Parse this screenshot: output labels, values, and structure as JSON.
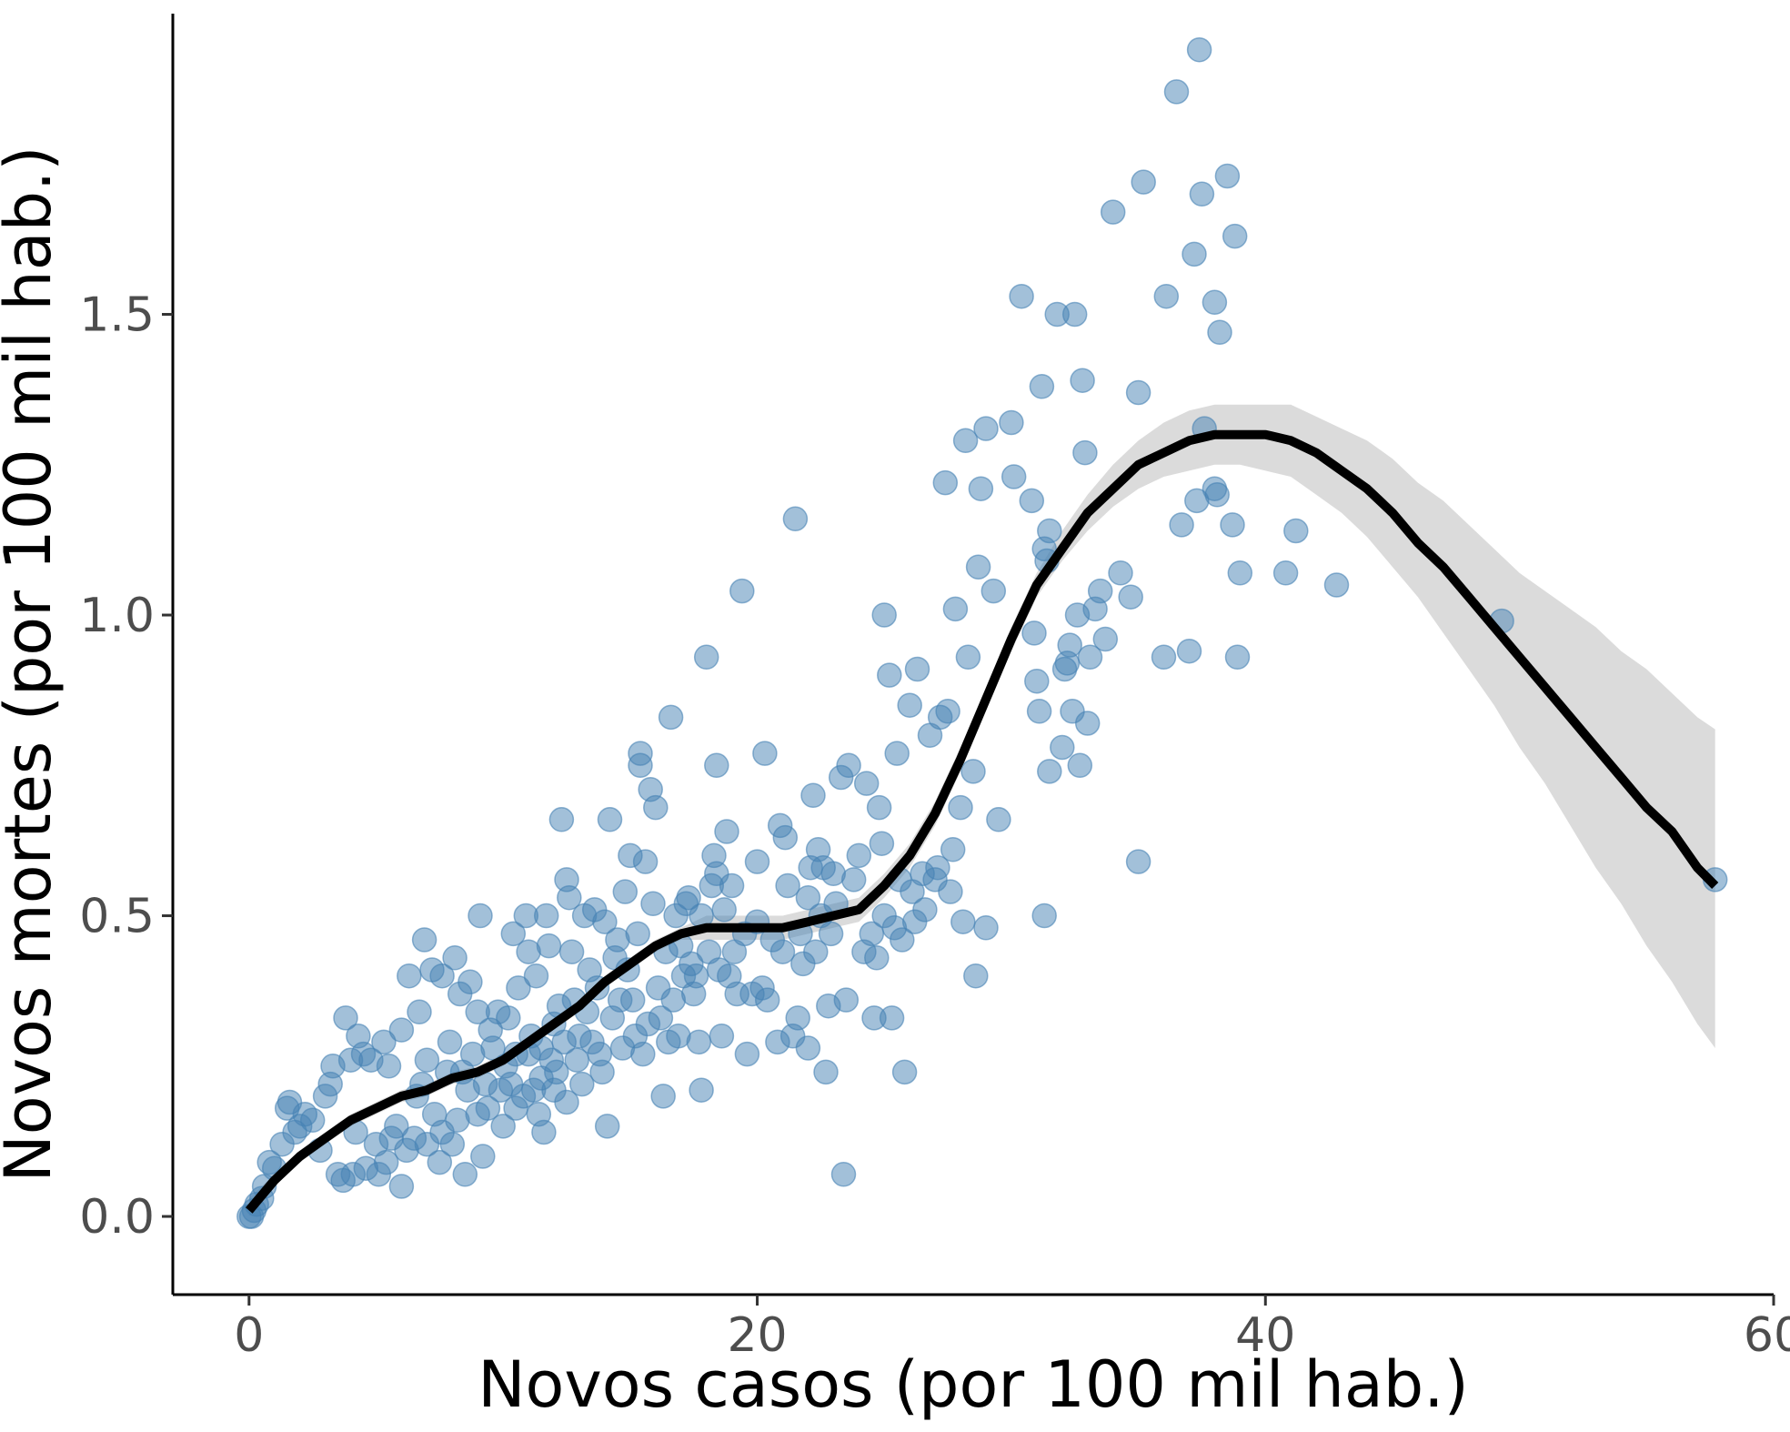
{
  "chart_data": {
    "type": "scatter",
    "title": "",
    "xlabel": "Novos casos (por 100 mil hab.)",
    "ylabel": "Novos mortes (por 100 mil hab.)",
    "xlim": [
      -3,
      60
    ],
    "ylim": [
      -0.13,
      2.0
    ],
    "x_ticks": [
      0,
      20,
      40,
      60
    ],
    "x_tick_labels": [
      "0",
      "20",
      "40",
      "60"
    ],
    "y_ticks": [
      0,
      0.5,
      1,
      1.5
    ],
    "y_tick_labels": [
      "0.0",
      "0.5",
      "1.0",
      "1.5"
    ],
    "grid": false,
    "legend": "none",
    "colors": {
      "points": "#4682b4",
      "smooth_line": "#000000",
      "confidence_band": "#d9d9d9"
    },
    "points": [
      [
        0,
        0
      ],
      [
        0.1,
        0
      ],
      [
        0.2,
        0.01
      ],
      [
        0.3,
        0.02
      ],
      [
        0.5,
        0.03
      ],
      [
        0.6,
        0.05
      ],
      [
        0.8,
        0.09
      ],
      [
        1,
        0.08
      ],
      [
        1.3,
        0.12
      ],
      [
        1.5,
        0.18
      ],
      [
        1.6,
        0.19
      ],
      [
        1.8,
        0.14
      ],
      [
        2,
        0.15
      ],
      [
        2.2,
        0.17
      ],
      [
        2.5,
        0.16
      ],
      [
        2.8,
        0.11
      ],
      [
        3,
        0.2
      ],
      [
        3.2,
        0.22
      ],
      [
        3.3,
        0.25
      ],
      [
        3.5,
        0.07
      ],
      [
        3.7,
        0.06
      ],
      [
        3.8,
        0.33
      ],
      [
        4,
        0.26
      ],
      [
        4.1,
        0.07
      ],
      [
        4.2,
        0.14
      ],
      [
        4.3,
        0.3
      ],
      [
        4.5,
        0.27
      ],
      [
        4.6,
        0.08
      ],
      [
        4.8,
        0.26
      ],
      [
        5,
        0.12
      ],
      [
        5.1,
        0.07
      ],
      [
        5.3,
        0.29
      ],
      [
        5.4,
        0.09
      ],
      [
        5.5,
        0.25
      ],
      [
        5.6,
        0.13
      ],
      [
        5.8,
        0.15
      ],
      [
        6,
        0.31
      ],
      [
        6,
        0.05
      ],
      [
        6.2,
        0.11
      ],
      [
        6.3,
        0.4
      ],
      [
        6.5,
        0.13
      ],
      [
        6.6,
        0.2
      ],
      [
        6.7,
        0.34
      ],
      [
        6.8,
        0.22
      ],
      [
        6.9,
        0.46
      ],
      [
        7,
        0.26
      ],
      [
        7,
        0.12
      ],
      [
        7.2,
        0.41
      ],
      [
        7.3,
        0.17
      ],
      [
        7.5,
        0.09
      ],
      [
        7.6,
        0.4
      ],
      [
        7.6,
        0.14
      ],
      [
        7.8,
        0.24
      ],
      [
        7.9,
        0.29
      ],
      [
        8,
        0.12
      ],
      [
        8.1,
        0.43
      ],
      [
        8.2,
        0.16
      ],
      [
        8.3,
        0.37
      ],
      [
        8.4,
        0.24
      ],
      [
        8.5,
        0.07
      ],
      [
        8.6,
        0.21
      ],
      [
        8.7,
        0.39
      ],
      [
        8.8,
        0.27
      ],
      [
        9,
        0.34
      ],
      [
        9,
        0.17
      ],
      [
        9.1,
        0.5
      ],
      [
        9.2,
        0.1
      ],
      [
        9.3,
        0.22
      ],
      [
        9.4,
        0.18
      ],
      [
        9.5,
        0.31
      ],
      [
        9.6,
        0.28
      ],
      [
        9.8,
        0.34
      ],
      [
        9.9,
        0.21
      ],
      [
        10,
        0.15
      ],
      [
        10.1,
        0.25
      ],
      [
        10.2,
        0.33
      ],
      [
        10.3,
        0.22
      ],
      [
        10.4,
        0.47
      ],
      [
        10.5,
        0.27
      ],
      [
        10.5,
        0.18
      ],
      [
        10.6,
        0.38
      ],
      [
        10.8,
        0.2
      ],
      [
        10.9,
        0.5
      ],
      [
        11,
        0.44
      ],
      [
        11,
        0.27
      ],
      [
        11.1,
        0.3
      ],
      [
        11.2,
        0.21
      ],
      [
        11.3,
        0.4
      ],
      [
        11.4,
        0.17
      ],
      [
        11.5,
        0.28
      ],
      [
        11.5,
        0.23
      ],
      [
        11.6,
        0.14
      ],
      [
        11.7,
        0.5
      ],
      [
        11.8,
        0.45
      ],
      [
        11.9,
        0.26
      ],
      [
        12,
        0.32
      ],
      [
        12,
        0.21
      ],
      [
        12.1,
        0.24
      ],
      [
        12.2,
        0.35
      ],
      [
        12.3,
        0.66
      ],
      [
        12.4,
        0.29
      ],
      [
        12.5,
        0.56
      ],
      [
        12.5,
        0.19
      ],
      [
        12.6,
        0.53
      ],
      [
        12.7,
        0.44
      ],
      [
        12.8,
        0.36
      ],
      [
        12.9,
        0.26
      ],
      [
        13,
        0.3
      ],
      [
        13.1,
        0.22
      ],
      [
        13.2,
        0.5
      ],
      [
        13.3,
        0.34
      ],
      [
        13.4,
        0.41
      ],
      [
        13.5,
        0.29
      ],
      [
        13.6,
        0.51
      ],
      [
        13.7,
        0.38
      ],
      [
        13.8,
        0.27
      ],
      [
        13.9,
        0.24
      ],
      [
        14,
        0.49
      ],
      [
        14.1,
        0.15
      ],
      [
        14.2,
        0.66
      ],
      [
        14.3,
        0.33
      ],
      [
        14.4,
        0.43
      ],
      [
        14.5,
        0.46
      ],
      [
        14.6,
        0.36
      ],
      [
        14.7,
        0.28
      ],
      [
        14.8,
        0.54
      ],
      [
        14.9,
        0.41
      ],
      [
        15,
        0.6
      ],
      [
        15.1,
        0.36
      ],
      [
        15.2,
        0.3
      ],
      [
        15.3,
        0.47
      ],
      [
        15.4,
        0.77
      ],
      [
        15.4,
        0.75
      ],
      [
        15.5,
        0.27
      ],
      [
        15.6,
        0.59
      ],
      [
        15.7,
        0.32
      ],
      [
        15.8,
        0.71
      ],
      [
        15.9,
        0.52
      ],
      [
        16,
        0.68
      ],
      [
        16.1,
        0.38
      ],
      [
        16.2,
        0.33
      ],
      [
        16.3,
        0.2
      ],
      [
        16.4,
        0.44
      ],
      [
        16.5,
        0.29
      ],
      [
        16.6,
        0.83
      ],
      [
        16.7,
        0.36
      ],
      [
        16.8,
        0.5
      ],
      [
        16.9,
        0.3
      ],
      [
        17,
        0.45
      ],
      [
        17.1,
        0.4
      ],
      [
        17.2,
        0.52
      ],
      [
        17.3,
        0.53
      ],
      [
        17.4,
        0.42
      ],
      [
        17.5,
        0.37
      ],
      [
        17.6,
        0.4
      ],
      [
        17.7,
        0.29
      ],
      [
        17.8,
        0.5
      ],
      [
        17.8,
        0.21
      ],
      [
        18,
        0.93
      ],
      [
        18.1,
        0.44
      ],
      [
        18.2,
        0.55
      ],
      [
        18.3,
        0.6
      ],
      [
        18.4,
        0.57
      ],
      [
        18.4,
        0.75
      ],
      [
        18.5,
        0.41
      ],
      [
        18.6,
        0.3
      ],
      [
        18.7,
        0.51
      ],
      [
        18.8,
        0.64
      ],
      [
        18.9,
        0.4
      ],
      [
        19,
        0.55
      ],
      [
        19.1,
        0.44
      ],
      [
        19.2,
        0.37
      ],
      [
        19.4,
        1.04
      ],
      [
        19.5,
        0.47
      ],
      [
        19.6,
        0.27
      ],
      [
        19.8,
        0.37
      ],
      [
        20,
        0.59
      ],
      [
        20,
        0.49
      ],
      [
        20.2,
        0.38
      ],
      [
        20.3,
        0.77
      ],
      [
        20.4,
        0.36
      ],
      [
        20.6,
        0.46
      ],
      [
        20.8,
        0.29
      ],
      [
        20.9,
        0.65
      ],
      [
        21,
        0.44
      ],
      [
        21.1,
        0.63
      ],
      [
        21.2,
        0.55
      ],
      [
        21.4,
        0.3
      ],
      [
        21.5,
        1.16
      ],
      [
        21.6,
        0.33
      ],
      [
        21.7,
        0.47
      ],
      [
        21.8,
        0.42
      ],
      [
        22,
        0.28
      ],
      [
        22,
        0.53
      ],
      [
        22.1,
        0.58
      ],
      [
        22.2,
        0.7
      ],
      [
        22.3,
        0.44
      ],
      [
        22.4,
        0.61
      ],
      [
        22.5,
        0.5
      ],
      [
        22.6,
        0.58
      ],
      [
        22.7,
        0.24
      ],
      [
        22.8,
        0.35
      ],
      [
        22.9,
        0.47
      ],
      [
        23,
        0.57
      ],
      [
        23.1,
        0.52
      ],
      [
        23.3,
        0.73
      ],
      [
        23.4,
        0.07
      ],
      [
        23.5,
        0.36
      ],
      [
        23.6,
        0.75
      ],
      [
        23.8,
        0.56
      ],
      [
        24,
        0.6
      ],
      [
        24.2,
        0.44
      ],
      [
        24.3,
        0.72
      ],
      [
        24.5,
        0.47
      ],
      [
        24.6,
        0.33
      ],
      [
        24.7,
        0.43
      ],
      [
        24.8,
        0.68
      ],
      [
        24.9,
        0.62
      ],
      [
        25,
        0.5
      ],
      [
        25,
        1
      ],
      [
        25.2,
        0.9
      ],
      [
        25.3,
        0.33
      ],
      [
        25.4,
        0.48
      ],
      [
        25.5,
        0.77
      ],
      [
        25.6,
        0.56
      ],
      [
        25.7,
        0.46
      ],
      [
        25.8,
        0.24
      ],
      [
        26,
        0.85
      ],
      [
        26.1,
        0.54
      ],
      [
        26.2,
        0.49
      ],
      [
        26.3,
        0.91
      ],
      [
        26.5,
        0.57
      ],
      [
        26.6,
        0.51
      ],
      [
        26.8,
        0.8
      ],
      [
        27,
        0.56
      ],
      [
        27.1,
        0.58
      ],
      [
        27.2,
        0.83
      ],
      [
        27.4,
        1.22
      ],
      [
        27.5,
        0.84
      ],
      [
        27.6,
        0.54
      ],
      [
        27.7,
        0.61
      ],
      [
        27.8,
        1.01
      ],
      [
        28,
        0.68
      ],
      [
        28.1,
        0.49
      ],
      [
        28.2,
        1.29
      ],
      [
        28.3,
        0.93
      ],
      [
        28.5,
        0.74
      ],
      [
        28.6,
        0.4
      ],
      [
        28.7,
        1.08
      ],
      [
        28.8,
        1.21
      ],
      [
        29,
        1.31
      ],
      [
        29,
        0.48
      ],
      [
        29.3,
        1.04
      ],
      [
        29.5,
        0.66
      ],
      [
        30,
        1.32
      ],
      [
        30.1,
        1.23
      ],
      [
        30.4,
        1.53
      ],
      [
        30.8,
        1.19
      ],
      [
        30.9,
        0.97
      ],
      [
        31,
        0.89
      ],
      [
        31.1,
        0.84
      ],
      [
        31.2,
        1.38
      ],
      [
        31.3,
        1.11
      ],
      [
        31.3,
        0.5
      ],
      [
        31.4,
        1.09
      ],
      [
        31.5,
        0.74
      ],
      [
        31.5,
        1.14
      ],
      [
        31.8,
        1.5
      ],
      [
        32,
        0.78
      ],
      [
        32.1,
        0.91
      ],
      [
        32.2,
        0.92
      ],
      [
        32.3,
        0.95
      ],
      [
        32.4,
        0.84
      ],
      [
        32.5,
        1.5
      ],
      [
        32.6,
        1
      ],
      [
        32.7,
        0.75
      ],
      [
        32.8,
        1.39
      ],
      [
        32.9,
        1.27
      ],
      [
        33,
        0.82
      ],
      [
        33.1,
        0.93
      ],
      [
        33.3,
        1.01
      ],
      [
        33.5,
        1.04
      ],
      [
        33.7,
        0.96
      ],
      [
        34,
        1.67
      ],
      [
        34.3,
        1.07
      ],
      [
        34.7,
        1.03
      ],
      [
        35,
        1.37
      ],
      [
        35,
        0.59
      ],
      [
        35.2,
        1.72
      ],
      [
        36,
        0.93
      ],
      [
        36.1,
        1.53
      ],
      [
        36.5,
        1.87
      ],
      [
        36.7,
        1.15
      ],
      [
        37,
        0.94
      ],
      [
        37.2,
        1.6
      ],
      [
        37.3,
        1.19
      ],
      [
        37.4,
        1.94
      ],
      [
        37.5,
        1.7
      ],
      [
        37.6,
        1.31
      ],
      [
        38,
        1.52
      ],
      [
        38,
        1.21
      ],
      [
        38.1,
        1.2
      ],
      [
        38.2,
        1.47
      ],
      [
        38.5,
        1.73
      ],
      [
        38.7,
        1.15
      ],
      [
        38.8,
        1.63
      ],
      [
        38.9,
        0.93
      ],
      [
        39,
        1.07
      ],
      [
        40.8,
        1.07
      ],
      [
        41.2,
        1.14
      ],
      [
        42.8,
        1.05
      ],
      [
        49.3,
        0.99
      ],
      [
        57.7,
        0.56
      ]
    ],
    "smooth_line": {
      "x": [
        0,
        1,
        2,
        3,
        4,
        5,
        6,
        7,
        8,
        9,
        10,
        11,
        12,
        13,
        14,
        15,
        16,
        17,
        18,
        19,
        20,
        21,
        22,
        23,
        24,
        25,
        26,
        27,
        28,
        29,
        30,
        31,
        32,
        33,
        34,
        35,
        36,
        37,
        38,
        39,
        40,
        41,
        42,
        43,
        44,
        45,
        46,
        47,
        48,
        49,
        50,
        51,
        52,
        53,
        54,
        55,
        56,
        57,
        57.7
      ],
      "y": [
        0.01,
        0.06,
        0.1,
        0.13,
        0.16,
        0.18,
        0.2,
        0.21,
        0.23,
        0.24,
        0.26,
        0.29,
        0.32,
        0.35,
        0.39,
        0.42,
        0.45,
        0.47,
        0.48,
        0.48,
        0.48,
        0.48,
        0.49,
        0.5,
        0.51,
        0.55,
        0.6,
        0.67,
        0.76,
        0.86,
        0.96,
        1.05,
        1.11,
        1.17,
        1.21,
        1.25,
        1.27,
        1.29,
        1.3,
        1.3,
        1.3,
        1.29,
        1.27,
        1.24,
        1.21,
        1.17,
        1.12,
        1.08,
        1.03,
        0.98,
        0.93,
        0.88,
        0.83,
        0.78,
        0.73,
        0.68,
        0.64,
        0.58,
        0.55
      ],
      "ci_lower": [
        0,
        0.05,
        0.09,
        0.12,
        0.15,
        0.17,
        0.19,
        0.2,
        0.22,
        0.23,
        0.25,
        0.28,
        0.31,
        0.34,
        0.38,
        0.41,
        0.44,
        0.46,
        0.46,
        0.46,
        0.46,
        0.46,
        0.47,
        0.48,
        0.49,
        0.53,
        0.58,
        0.65,
        0.74,
        0.84,
        0.94,
        1.03,
        1.09,
        1.14,
        1.18,
        1.21,
        1.23,
        1.24,
        1.25,
        1.25,
        1.24,
        1.23,
        1.2,
        1.17,
        1.13,
        1.08,
        1.03,
        0.97,
        0.91,
        0.85,
        0.78,
        0.72,
        0.65,
        0.58,
        0.52,
        0.45,
        0.39,
        0.32,
        0.28
      ],
      "ci_upper": [
        0.03,
        0.07,
        0.11,
        0.14,
        0.17,
        0.19,
        0.21,
        0.22,
        0.24,
        0.25,
        0.27,
        0.3,
        0.33,
        0.36,
        0.4,
        0.43,
        0.46,
        0.48,
        0.5,
        0.5,
        0.5,
        0.5,
        0.51,
        0.52,
        0.53,
        0.57,
        0.62,
        0.69,
        0.78,
        0.88,
        0.98,
        1.07,
        1.14,
        1.2,
        1.25,
        1.29,
        1.32,
        1.34,
        1.35,
        1.35,
        1.35,
        1.35,
        1.33,
        1.31,
        1.29,
        1.26,
        1.22,
        1.19,
        1.15,
        1.11,
        1.07,
        1.04,
        1.01,
        0.98,
        0.94,
        0.91,
        0.87,
        0.83,
        0.81
      ]
    }
  }
}
